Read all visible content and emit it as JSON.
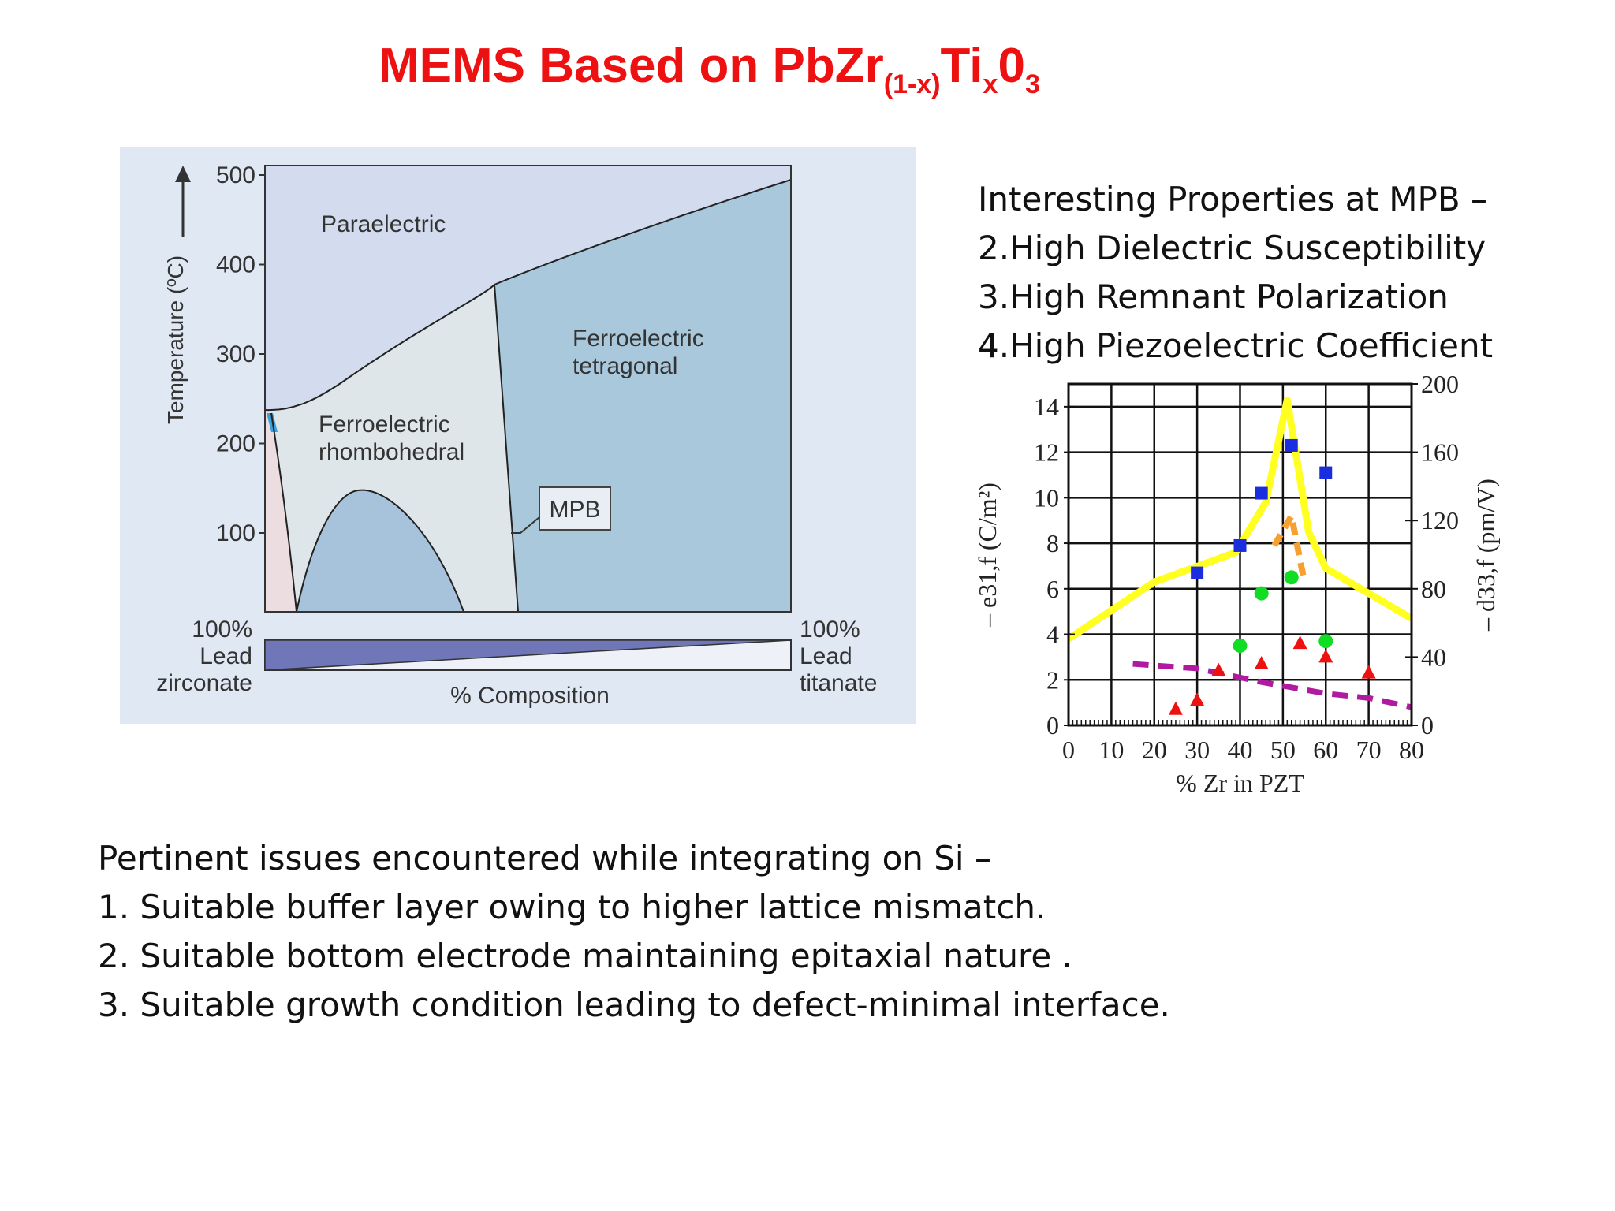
{
  "slide": {
    "title_main": "MEMS Based on PbZr",
    "title_sub1": "(1-x)",
    "title_mid": "Ti",
    "title_sub2": "x",
    "title_end": "0",
    "title_sub3": "3",
    "title_color": "#ee1111"
  },
  "phase_diagram": {
    "y_axis_label": "Temperature (ºC)",
    "y_ticks": [
      "500",
      "400",
      "300",
      "200",
      "100"
    ],
    "regions": {
      "paraelectric": "Paraelectric",
      "tetragonal_line1": "Ferroelectric",
      "tetragonal_line2": "tetragonal",
      "rhombohedral_line1": "Ferroelectric",
      "rhombohedral_line2": "rhombohedral",
      "mpb": "MPB"
    },
    "left_label": [
      "100%",
      "Lead",
      "zirconate"
    ],
    "right_label": [
      "100%",
      "Lead",
      "titanate"
    ],
    "x_axis_label": "% Composition",
    "colors": {
      "panel_bg": "#dfe8f3",
      "paraelectric": "#d3dcef",
      "rhombohedral": "#dfe6ea",
      "tetragonal": "#a9c8dc",
      "low_rhombo": "#a6c3db",
      "wedge": "#6f77b9"
    }
  },
  "properties": {
    "heading": "Interesting Properties  at MPB –",
    "items": [
      "2.High Dielectric Susceptibility",
      "3.High Remnant Polarization",
      "4.High Piezoelectric Coefficient"
    ]
  },
  "chart_data": {
    "type": "line",
    "xlabel": "% Zr in PZT",
    "ylabel_left": "– e31,f (C/m²)",
    "ylabel_right": "– d33,f (pm/V)",
    "xlim": [
      0,
      80
    ],
    "ylim_left": [
      0,
      15
    ],
    "ylim_right": [
      0,
      200
    ],
    "x_ticks": [
      "0",
      "10",
      "20",
      "30",
      "40",
      "50",
      "60",
      "70",
      "80"
    ],
    "y_left_ticks": [
      "0",
      "2",
      "4",
      "6",
      "8",
      "10",
      "12",
      "14"
    ],
    "y_right_ticks": [
      "0",
      "40",
      "80",
      "120",
      "160",
      "200"
    ],
    "grid": true,
    "series": [
      {
        "style": "yellow-line",
        "color": "#ffff22",
        "axis": "left",
        "x": [
          0,
          20,
          39,
          46,
          51,
          56,
          60,
          80
        ],
        "y": [
          3.8,
          6.3,
          7.6,
          9.8,
          14.3,
          8.5,
          6.9,
          4.7
        ]
      },
      {
        "style": "orange-dash",
        "color": "#f5a030",
        "axis": "left",
        "x": [
          48,
          52,
          55
        ],
        "y": [
          7.9,
          9.2,
          6.3
        ]
      },
      {
        "style": "magenta-dash",
        "color": "#b01aa0",
        "axis": "left",
        "x": [
          15,
          30,
          45,
          60,
          70,
          80
        ],
        "y": [
          2.7,
          2.5,
          1.9,
          1.4,
          1.2,
          0.8
        ]
      },
      {
        "style": "blue-square",
        "color": "#1a2ee0",
        "axis": "left",
        "x": [
          30,
          40,
          45,
          52,
          60
        ],
        "y": [
          6.7,
          7.9,
          10.2,
          12.3,
          11.1
        ]
      },
      {
        "style": "green-circle",
        "color": "#11dd22",
        "axis": "left",
        "x": [
          40,
          45,
          52,
          60
        ],
        "y": [
          3.5,
          5.8,
          6.5,
          3.7
        ]
      },
      {
        "style": "red-triangle",
        "color": "#ee1111",
        "axis": "left",
        "x": [
          25,
          30,
          35,
          45,
          54,
          60,
          70
        ],
        "y": [
          0.7,
          1.1,
          2.4,
          2.7,
          3.6,
          3.0,
          2.3
        ]
      }
    ]
  },
  "issues": {
    "heading": "Pertinent issues encountered while integrating on Si –",
    "items": [
      "1. Suitable buffer layer owing to higher lattice mismatch.",
      "2. Suitable bottom electrode maintaining epitaxial nature .",
      "3. Suitable growth condition leading to defect-minimal interface."
    ]
  }
}
